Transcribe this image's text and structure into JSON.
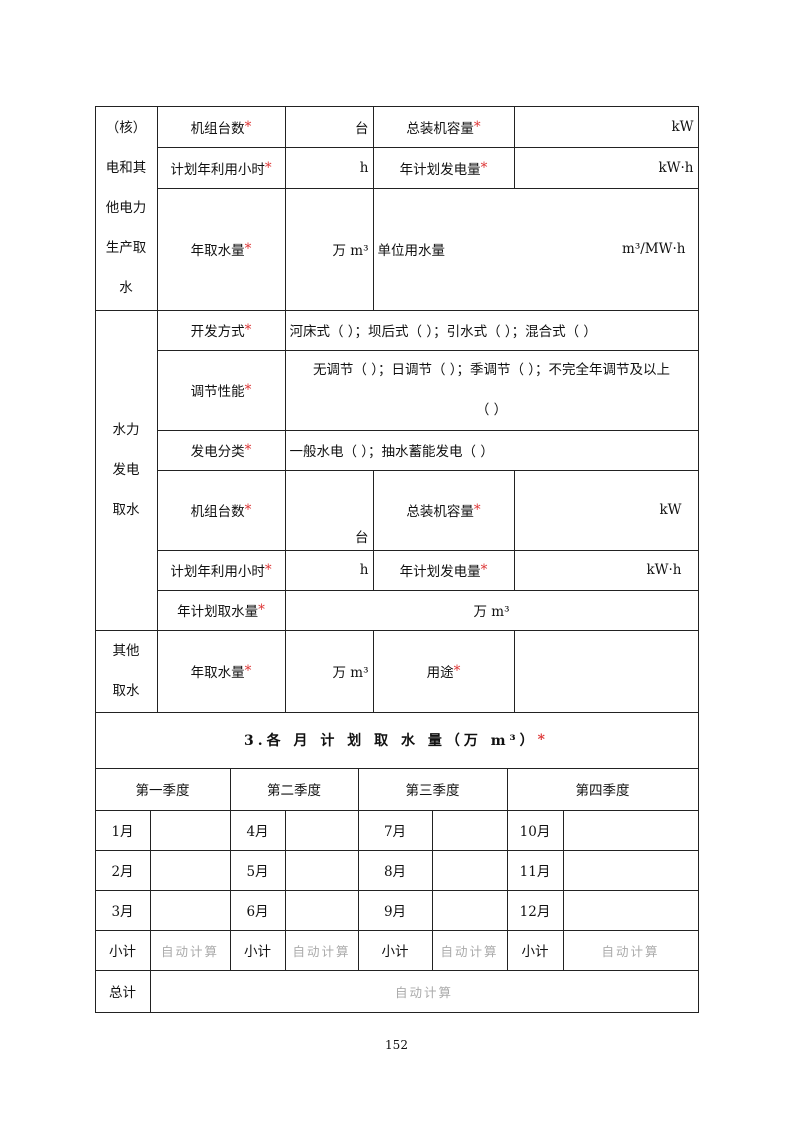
{
  "required_mark": "*",
  "thermal": {
    "label": "（核）\n电和其\n他电力\n生产取\n水",
    "units_count": "机组台数",
    "units_unit": "台",
    "capacity": "总装机容量",
    "capacity_unit": "kW",
    "hours": "计划年利用小时",
    "hours_unit": "h",
    "generation": "年计划发电量",
    "generation_unit": "kW·h",
    "annual_water": "年取水量",
    "annual_water_unit": "万 m³",
    "unit_water": "单位用水量",
    "unit_water_unit": "m³/MW·h"
  },
  "hydro": {
    "label": "水力\n发电\n取水",
    "dev_mode": "开发方式",
    "dev_mode_options": "河床式（ ）；坝后式（ ）；引水式（ ）；混合式（ ）",
    "regulation": "调节性能",
    "regulation_options": "无调节（ ）；日调节（ ）；季调节（ ）；不完全年调节及以上\n（ ）",
    "gen_type": "发电分类",
    "gen_type_options": "一般水电（ ）；抽水蓄能发电（ ）",
    "units_count": "机组台数",
    "units_unit": "台",
    "capacity": "总装机容量",
    "capacity_unit": "kW",
    "hours": "计划年利用小时",
    "hours_unit": "h",
    "generation": "年计划发电量",
    "generation_unit": "kW·h",
    "annual_plan": "年计划取水量",
    "annual_plan_unit": "万 m³"
  },
  "other": {
    "label": "其他\n取水",
    "annual_water": "年取水量",
    "annual_water_unit": "万 m³",
    "purpose": "用途"
  },
  "monthly": {
    "title": "3.各 月 计 划 取 水 量（万 m³）",
    "quarters": [
      "第一季度",
      "第二季度",
      "第三季度",
      "第四季度"
    ],
    "months": [
      [
        "1月",
        "4月",
        "7月",
        "10月"
      ],
      [
        "2月",
        "5月",
        "8月",
        "11月"
      ],
      [
        "3月",
        "6月",
        "9月",
        "12月"
      ]
    ],
    "subtotal": "小计",
    "auto": "自动计算",
    "total": "总计"
  },
  "page_number": "152"
}
